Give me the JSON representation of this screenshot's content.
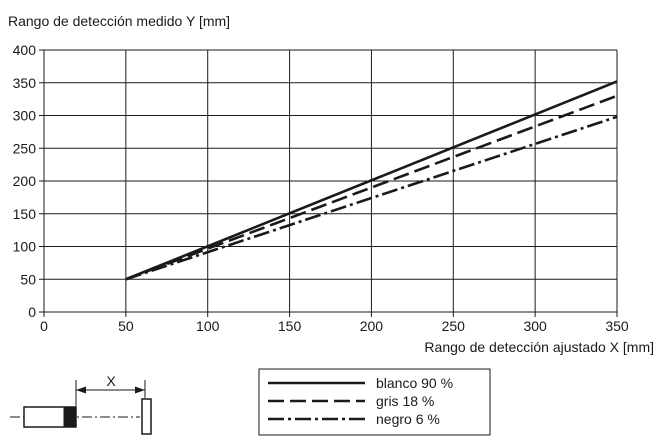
{
  "chart_data": {
    "type": "line",
    "title": "",
    "ylabel": "Rango de detección medido Y [mm]",
    "xlabel": "Rango de detección ajustado X [mm]",
    "xlim": [
      0,
      350
    ],
    "ylim": [
      0,
      400
    ],
    "xticks": [
      0,
      50,
      100,
      150,
      200,
      250,
      300,
      350
    ],
    "yticks": [
      0,
      50,
      100,
      150,
      200,
      250,
      300,
      350,
      400
    ],
    "grid": true,
    "legend_position": "bottom-center",
    "series": [
      {
        "name": "blanco 90 %",
        "style": "solid",
        "color": "#1a1a1a",
        "x": [
          50,
          350
        ],
        "y": [
          50,
          352
        ]
      },
      {
        "name": "gris 18 %",
        "style": "dashed",
        "color": "#1a1a1a",
        "x": [
          50,
          350
        ],
        "y": [
          50,
          330
        ]
      },
      {
        "name": "negro 6 %",
        "style": "dash-dot",
        "color": "#1a1a1a",
        "x": [
          50,
          350
        ],
        "y": [
          50,
          298
        ]
      }
    ]
  },
  "diagram": {
    "distance_label": "X"
  }
}
